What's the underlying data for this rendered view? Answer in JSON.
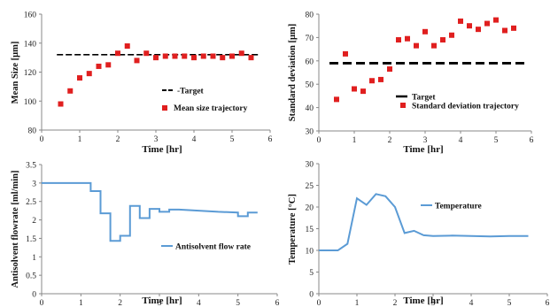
{
  "chart_data": [
    {
      "type": "scatter",
      "xlabel": "Time [hr]",
      "ylabel": "Mean Size [μm]",
      "xlim": [
        0,
        6
      ],
      "ylim": [
        80,
        160
      ],
      "xticks": [
        0,
        1,
        2,
        3,
        4,
        5,
        6
      ],
      "yticks": [
        80,
        100,
        120,
        140,
        160
      ],
      "legend_position": "center-right",
      "series": [
        {
          "name": "-Target",
          "kind": "dashed-line",
          "color": "#000000",
          "x": [
            0.4,
            5.7
          ],
          "y": [
            132,
            132
          ]
        },
        {
          "name": "Mean size trajectory",
          "kind": "markers",
          "color": "#e01f1f",
          "x": [
            0.5,
            0.75,
            1.0,
            1.25,
            1.5,
            1.75,
            2.0,
            2.25,
            2.5,
            2.75,
            3.0,
            3.25,
            3.5,
            3.75,
            4.0,
            4.25,
            4.5,
            4.75,
            5.0,
            5.25,
            5.5
          ],
          "y": [
            98,
            107,
            116,
            119,
            124,
            125,
            133,
            138,
            128,
            133,
            130,
            131,
            131,
            131,
            130,
            131,
            131,
            130,
            131,
            133,
            130
          ]
        }
      ]
    },
    {
      "type": "scatter",
      "xlabel": "Time [hr]",
      "ylabel": "Standard deviation [μm]",
      "xlim": [
        0,
        6
      ],
      "ylim": [
        30,
        80
      ],
      "xticks": [
        0,
        1,
        2,
        3,
        4,
        5,
        6
      ],
      "yticks": [
        30,
        40,
        50,
        60,
        70,
        80
      ],
      "legend_position": "lower-right",
      "series": [
        {
          "name": "Target",
          "kind": "dashed-line",
          "color": "#000000",
          "x": [
            0.3,
            5.9
          ],
          "y": [
            59,
            59
          ]
        },
        {
          "name": "Standard deviation trajectory",
          "kind": "markers",
          "color": "#e01f1f",
          "x": [
            0.5,
            0.75,
            1.0,
            1.25,
            1.5,
            1.75,
            2.0,
            2.25,
            2.5,
            2.75,
            3.0,
            3.25,
            3.5,
            3.75,
            4.0,
            4.25,
            4.5,
            4.75,
            5.0,
            5.25,
            5.5
          ],
          "y": [
            43.5,
            63,
            48,
            47,
            51.5,
            52,
            56.5,
            69,
            69.5,
            66.5,
            72.5,
            66.5,
            69,
            71,
            77,
            75,
            73.5,
            76,
            77.5,
            73,
            74
          ]
        }
      ]
    },
    {
      "type": "line",
      "xlabel": "Time [hr]",
      "ylabel": "Antisolvent flowrate [ml/min]",
      "xlim": [
        0,
        6
      ],
      "ylim": [
        0,
        3.5
      ],
      "xticks": [
        0,
        1,
        2,
        3,
        4,
        5,
        6
      ],
      "yticks": [
        0,
        0.5,
        1,
        1.5,
        2,
        2.5,
        3,
        3.5
      ],
      "legend_position": "lower-right",
      "series": [
        {
          "name": "Antisolvent flow rate",
          "color": "#5b9bd5",
          "x": [
            0,
            1.25,
            1.25,
            1.5,
            1.5,
            1.75,
            1.75,
            2.0,
            2.0,
            2.25,
            2.25,
            2.5,
            2.5,
            2.75,
            2.75,
            3.0,
            3.0,
            3.25,
            3.25,
            3.5,
            4.0,
            4.5,
            5.0,
            5.0,
            5.25,
            5.25,
            5.5
          ],
          "y": [
            3.0,
            3.0,
            2.78,
            2.78,
            2.18,
            2.18,
            1.43,
            1.43,
            1.57,
            1.57,
            2.38,
            2.38,
            2.05,
            2.05,
            2.3,
            2.3,
            2.22,
            2.22,
            2.28,
            2.28,
            2.25,
            2.22,
            2.2,
            2.1,
            2.1,
            2.2,
            2.2
          ]
        }
      ]
    },
    {
      "type": "line",
      "xlabel": "Time [hr]",
      "ylabel": "Temperature [°C]",
      "xlim": [
        0,
        6
      ],
      "ylim": [
        0,
        30
      ],
      "xticks": [
        0,
        1,
        2,
        3,
        4,
        5,
        6
      ],
      "yticks": [
        0,
        5,
        10,
        15,
        20,
        25,
        30
      ],
      "legend_position": "top-right",
      "series": [
        {
          "name": "Temperature",
          "color": "#5b9bd5",
          "x": [
            0,
            0.5,
            0.75,
            1.0,
            1.25,
            1.5,
            1.75,
            2.0,
            2.25,
            2.5,
            2.75,
            3.0,
            3.5,
            4.0,
            4.5,
            5.0,
            5.5
          ],
          "y": [
            10,
            10,
            11.5,
            22,
            20.5,
            23,
            22.5,
            20,
            14,
            14.5,
            13.5,
            13.3,
            13.4,
            13.3,
            13.2,
            13.3,
            13.3
          ]
        }
      ]
    }
  ]
}
